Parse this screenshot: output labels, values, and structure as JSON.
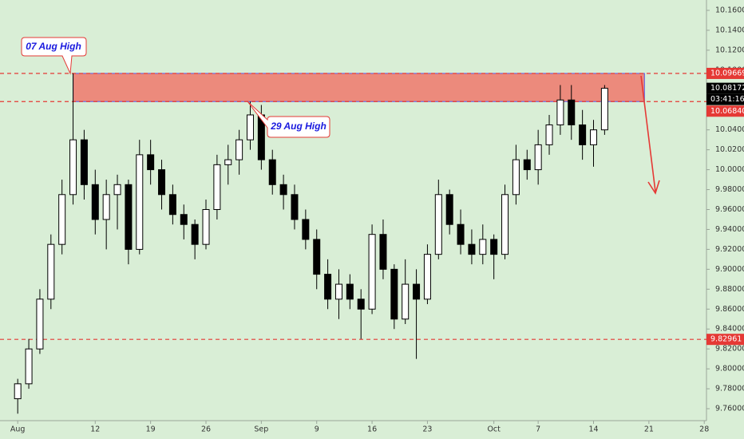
{
  "chart_data": {
    "type": "candlestick",
    "x": [
      0,
      1,
      2,
      3,
      4,
      5,
      6,
      7,
      8,
      9,
      10,
      11,
      12,
      13,
      14,
      15,
      16,
      17,
      18,
      19,
      20,
      21,
      22,
      23,
      24,
      25,
      26,
      27,
      28,
      29,
      30,
      31,
      32,
      33,
      34,
      35,
      36,
      37,
      38,
      39,
      40,
      41,
      42,
      43,
      44,
      45,
      46,
      47,
      48,
      49,
      50,
      51,
      52,
      53
    ],
    "open": [
      9.77,
      9.785,
      9.82,
      9.87,
      9.925,
      9.975,
      10.03,
      9.985,
      9.95,
      9.975,
      9.985,
      9.92,
      10.015,
      10.0,
      9.975,
      9.955,
      9.945,
      9.925,
      9.96,
      10.005,
      10.01,
      10.03,
      10.055,
      10.01,
      9.985,
      9.975,
      9.95,
      9.93,
      9.895,
      9.87,
      9.885,
      9.87,
      9.86,
      9.935,
      9.9,
      9.85,
      9.885,
      9.87,
      9.915,
      9.975,
      9.945,
      9.925,
      9.915,
      9.93,
      9.915,
      9.975,
      10.01,
      10.0,
      10.025,
      10.045,
      10.07,
      10.045,
      10.025,
      10.04
    ],
    "high": [
      9.79,
      9.83,
      9.88,
      9.935,
      9.99,
      10.09669,
      10.04,
      10.0,
      9.99,
      9.995,
      9.99,
      10.03,
      10.03,
      10.01,
      9.985,
      9.965,
      9.95,
      9.97,
      10.015,
      10.025,
      10.04,
      10.0684,
      10.065,
      10.02,
      9.995,
      9.985,
      9.96,
      9.94,
      9.91,
      9.9,
      9.895,
      9.88,
      9.945,
      9.95,
      9.905,
      9.91,
      9.9,
      9.925,
      9.99,
      9.98,
      9.96,
      9.94,
      9.945,
      9.935,
      9.985,
      10.025,
      10.02,
      10.04,
      10.055,
      10.085,
      10.085,
      10.06,
      10.05,
      10.085
    ],
    "low": [
      9.755,
      9.78,
      9.815,
      9.86,
      9.915,
      9.965,
      9.97,
      9.935,
      9.92,
      9.94,
      9.905,
      9.915,
      9.985,
      9.96,
      9.945,
      9.93,
      9.91,
      9.92,
      9.95,
      9.985,
      9.995,
      10.02,
      10.0,
      9.975,
      9.96,
      9.94,
      9.92,
      9.88,
      9.86,
      9.85,
      9.86,
      9.83,
      9.855,
      9.89,
      9.84,
      9.845,
      9.81,
      9.865,
      9.91,
      9.935,
      9.915,
      9.905,
      9.905,
      9.89,
      9.91,
      9.965,
      9.99,
      9.985,
      10.015,
      10.035,
      10.03,
      10.01,
      10.003,
      10.035
    ],
    "close": [
      9.785,
      9.82,
      9.87,
      9.925,
      9.975,
      10.03,
      9.985,
      9.95,
      9.975,
      9.985,
      9.92,
      10.015,
      10.0,
      9.975,
      9.955,
      9.945,
      9.925,
      9.96,
      10.005,
      10.01,
      10.03,
      10.055,
      10.01,
      9.985,
      9.975,
      9.95,
      9.93,
      9.895,
      9.87,
      9.885,
      9.87,
      9.86,
      9.935,
      9.9,
      9.85,
      9.885,
      9.87,
      9.915,
      9.975,
      9.945,
      9.925,
      9.915,
      9.93,
      9.915,
      9.975,
      10.01,
      10.0,
      10.025,
      10.045,
      10.07,
      10.045,
      10.025,
      10.04,
      10.08172
    ],
    "up_color": "#ffffff",
    "down_color": "#000000",
    "xlim": [
      -1.6,
      62.2
    ],
    "xticks": [
      {
        "value": 0,
        "label": "Aug"
      },
      {
        "value": 7,
        "label": "12"
      },
      {
        "value": 12,
        "label": "19"
      },
      {
        "value": 17,
        "label": "26"
      },
      {
        "value": 22,
        "label": "Sep"
      },
      {
        "value": 27,
        "label": "9"
      },
      {
        "value": 32,
        "label": "16"
      },
      {
        "value": 37,
        "label": "23"
      },
      {
        "value": 43,
        "label": "Oct"
      },
      {
        "value": 47,
        "label": "7"
      },
      {
        "value": 52,
        "label": "14"
      },
      {
        "value": 57,
        "label": "21"
      },
      {
        "value": 62,
        "label": "28"
      }
    ],
    "ylim": [
      9.748,
      10.1704
    ],
    "yticks": [
      {
        "value": 9.76,
        "label": "9.76000"
      },
      {
        "value": 9.78,
        "label": "9.78000"
      },
      {
        "value": 9.8,
        "label": "9.80000"
      },
      {
        "value": 9.82,
        "label": "9.82000"
      },
      {
        "value": 9.84,
        "label": "9.84000"
      },
      {
        "value": 9.86,
        "label": "9.86000"
      },
      {
        "value": 9.88,
        "label": "9.88000"
      },
      {
        "value": 9.9,
        "label": "9.90000"
      },
      {
        "value": 9.92,
        "label": "9.92000"
      },
      {
        "value": 9.94,
        "label": "9.94000"
      },
      {
        "value": 9.96,
        "label": "9.96000"
      },
      {
        "value": 9.98,
        "label": "9.98000"
      },
      {
        "value": 10,
        "label": "10.00000"
      },
      {
        "value": 10.02,
        "label": "10.02000"
      },
      {
        "value": 10.04,
        "label": "10.04000"
      },
      {
        "value": 10.06,
        "label": "10.06000"
      },
      {
        "value": 10.08,
        "label": "10.08000"
      },
      {
        "value": 10.1,
        "label": "10.10000"
      },
      {
        "value": 10.12,
        "label": "10.12000"
      },
      {
        "value": 10.14,
        "label": "10.14000"
      },
      {
        "value": 10.16,
        "label": "10.16000"
      }
    ],
    "levels": [
      10.09669,
      {
        "value": 10.0684,
        "label": "10.06840"
      },
      9.82961
    ],
    "level_color": "#e53935",
    "zone": {
      "top": 10.09669,
      "bottom": 10.0684,
      "x_start": 5,
      "x_end": 56.6,
      "color": "#ec8a7c"
    },
    "countdown": "03:41:16",
    "annotations": [
      "07 Aug High",
      "29 Aug High"
    ]
  }
}
